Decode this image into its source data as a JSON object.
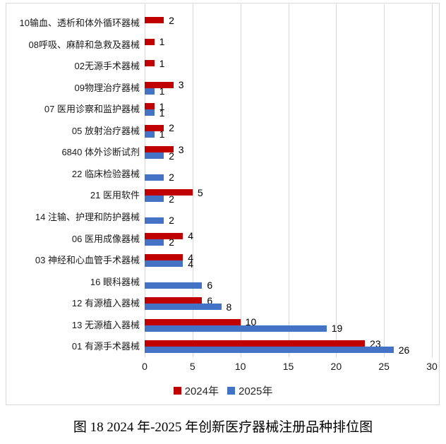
{
  "chart_data": {
    "type": "bar",
    "orientation": "horizontal",
    "title": "",
    "categories": [
      "10输血、透析和体外循环器械",
      "08呼吸、麻醉和急救及器械",
      "02无源手术器械",
      "09物理治疗器械",
      "07 医用诊察和监护器械",
      "05 放射治疗器械",
      "6840 体外诊断试剂",
      "22 临床检验器械",
      "21 医用软件",
      "14 注输、护理和防护器械",
      "06 医用成像器械",
      "03 神经和心血管手术器械",
      "16 眼科器械",
      "12 有源植入器械",
      "13 无源植入器械",
      "01 有源手术器械"
    ],
    "series": [
      {
        "name": "2024年",
        "color": "#c00000",
        "values": [
          2,
          1,
          1,
          3,
          1,
          2,
          3,
          null,
          5,
          null,
          4,
          4,
          null,
          6,
          10,
          23
        ]
      },
      {
        "name": "2025年",
        "color": "#4472c4",
        "values": [
          null,
          null,
          null,
          1,
          1,
          1,
          2,
          2,
          2,
          2,
          2,
          4,
          6,
          8,
          19,
          26
        ]
      }
    ],
    "xlim": [
      0,
      30
    ],
    "xticks": [
      0,
      5,
      10,
      15,
      20,
      25,
      30
    ],
    "grid": "vertical-major",
    "legend_position": "bottom",
    "data_labels": true
  },
  "legend": {
    "items": [
      {
        "label": "2024年",
        "color": "#c00000"
      },
      {
        "label": "2025年",
        "color": "#4472c4"
      }
    ]
  },
  "caption": "图 18 2024 年-2025 年创新医疗器械注册品种排位图",
  "colors": {
    "series_2024": "#c00000",
    "series_2025": "#4472c4",
    "gridline": "#d9d9d9",
    "frame_border": "#d9d9d9",
    "text": "#1a1a1a"
  }
}
